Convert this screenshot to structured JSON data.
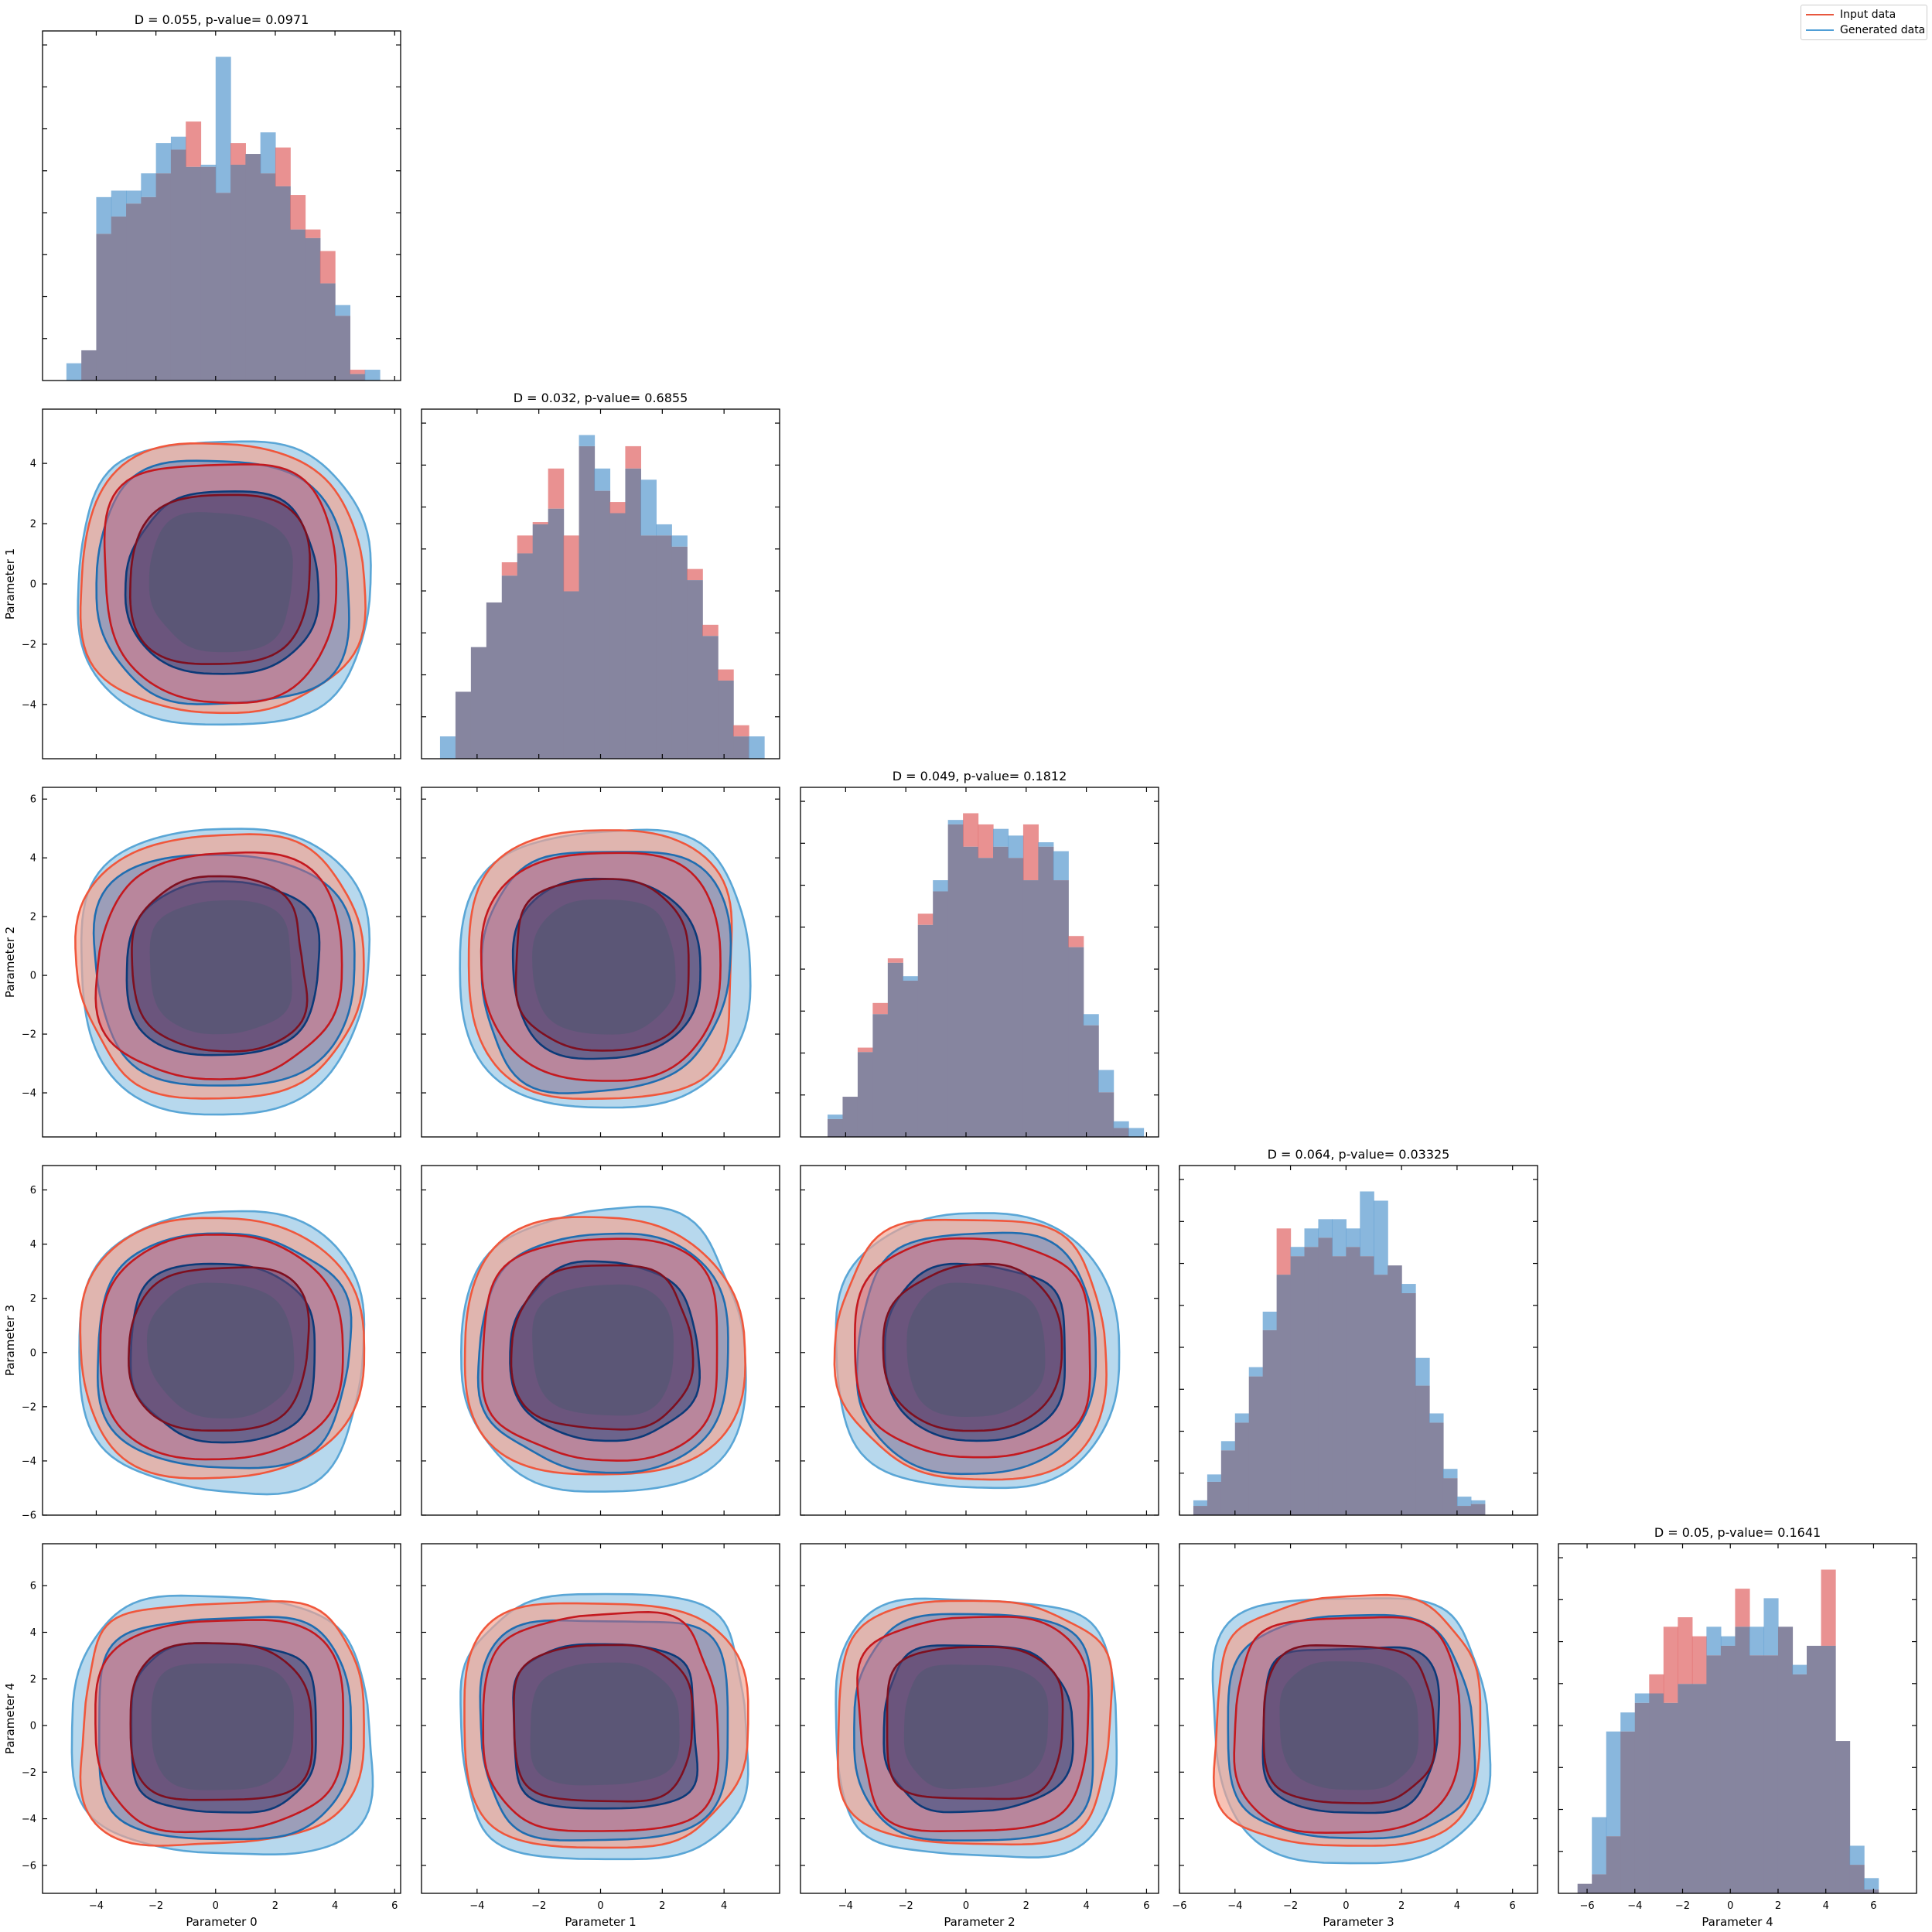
{
  "chart_data": {
    "type": "corner-plot",
    "legend": {
      "placement": "top-right",
      "entries": [
        {
          "label": "Input data",
          "color": "#e8573e"
        },
        {
          "label": "Generated data",
          "color": "#4f9ed6"
        }
      ]
    },
    "colors": {
      "input_hist": "#e06666",
      "generated_hist": "#5b9bd0",
      "overlap": "#86859f",
      "input_fill_outer": "#f4a38f",
      "input_line_outer": "#f0573c",
      "input_line_mid": "#c4191f",
      "input_line_inner": "#7e0f1f",
      "generated_fill_outer": "#a3cde8",
      "generated_line_outer": "#5aa6d6",
      "generated_line_mid": "#1f6db0",
      "generated_line_inner": "#0c3a78",
      "core_fill": "#5a5676"
    },
    "parameters": [
      {
        "label": "Parameter 0",
        "range": [
          -5.8,
          6.2
        ],
        "ticks": [
          -4,
          -2,
          0,
          2,
          4,
          6
        ],
        "center": 0.2,
        "half_width": 4.8
      },
      {
        "label": "Parameter 1",
        "range": [
          -5.8,
          5.8
        ],
        "ticks": [
          -4,
          -2,
          0,
          2,
          4
        ],
        "center": 0.1,
        "half_width": 4.6
      },
      {
        "label": "Parameter 2",
        "range": [
          -5.5,
          6.4
        ],
        "ticks": [
          -4,
          -2,
          0,
          2,
          4,
          6
        ],
        "center": 0.3,
        "half_width": 4.6
      },
      {
        "label": "Parameter 3",
        "range": [
          -6.0,
          6.9
        ],
        "ticks": [
          -6,
          -4,
          -2,
          0,
          2,
          4,
          6
        ],
        "center": 0.1,
        "half_width": 4.9
      },
      {
        "label": "Parameter 4",
        "range": [
          -7.2,
          7.8
        ],
        "ticks": [
          -6,
          -4,
          -2,
          0,
          2,
          4,
          6
        ],
        "center": 0.0,
        "half_width": 5.4
      }
    ],
    "ks_tests": [
      {
        "title": "D = 0.055, p-value= 0.0971"
      },
      {
        "title": "D = 0.032, p-value= 0.6855"
      },
      {
        "title": "D = 0.049, p-value= 0.1812"
      },
      {
        "title": "D = 0.064, p-value= 0.03325"
      },
      {
        "title": "D = 0.05, p-value= 0.1641"
      }
    ],
    "histograms": [
      {
        "bins": [
          -5.0,
          -4.5,
          -4.0,
          -3.5,
          -3.0,
          -2.5,
          -2.0,
          -1.5,
          -1.0,
          -0.5,
          0.0,
          0.5,
          1.0,
          1.5,
          2.0,
          2.5,
          3.0,
          3.5,
          4.0,
          4.5,
          5.0,
          5.5
        ],
        "input": [
          0,
          0.14,
          0.68,
          0.76,
          0.82,
          0.85,
          0.96,
          1.07,
          1.2,
          0.99,
          0.87,
          1.1,
          1.05,
          0.96,
          1.08,
          0.86,
          0.7,
          0.6,
          0.3,
          0.05,
          0
        ],
        "generated": [
          0.08,
          0.14,
          0.85,
          0.88,
          0.88,
          0.96,
          1.1,
          1.13,
          0.99,
          1.0,
          1.5,
          1.0,
          1.05,
          1.15,
          0.9,
          0.7,
          0.66,
          0.45,
          0.35,
          0.03,
          0.05
        ]
      },
      {
        "bins": [
          -5.2,
          -4.7,
          -4.2,
          -3.7,
          -3.2,
          -2.7,
          -2.2,
          -1.7,
          -1.2,
          -0.7,
          -0.2,
          0.3,
          0.8,
          1.3,
          1.8,
          2.3,
          2.8,
          3.3,
          3.8,
          4.3,
          4.8,
          5.3
        ],
        "input": [
          0,
          0.3,
          0.5,
          0.7,
          0.88,
          1.0,
          1.06,
          1.3,
          1.0,
          1.4,
          1.2,
          1.15,
          1.4,
          1.0,
          1.0,
          0.95,
          0.85,
          0.6,
          0.4,
          0.15,
          0
        ],
        "generated": [
          0.1,
          0.3,
          0.5,
          0.7,
          0.82,
          0.92,
          1.05,
          1.12,
          0.75,
          1.45,
          1.3,
          1.1,
          1.3,
          1.25,
          1.05,
          1.0,
          0.8,
          0.55,
          0.35,
          0.1,
          0.1
        ]
      },
      {
        "bins": [
          -4.6,
          -4.1,
          -3.6,
          -3.1,
          -2.6,
          -2.1,
          -1.6,
          -1.1,
          -0.6,
          -0.1,
          0.4,
          0.9,
          1.4,
          1.9,
          2.4,
          2.9,
          3.4,
          3.9,
          4.4,
          4.9,
          5.4,
          5.9
        ],
        "input": [
          0.08,
          0.18,
          0.4,
          0.6,
          0.8,
          0.7,
          1.0,
          1.1,
          1.4,
          1.45,
          1.4,
          1.3,
          1.25,
          1.4,
          1.3,
          1.15,
          0.9,
          0.5,
          0.2,
          0.04,
          0
        ],
        "generated": [
          0.1,
          0.18,
          0.38,
          0.55,
          0.78,
          0.72,
          0.95,
          1.15,
          1.42,
          1.3,
          1.25,
          1.38,
          1.35,
          1.15,
          1.32,
          1.28,
          0.85,
          0.55,
          0.3,
          0.07,
          0.04
        ]
      },
      {
        "bins": [
          -5.5,
          -5.0,
          -4.5,
          -4.0,
          -3.5,
          -3.0,
          -2.5,
          -2.0,
          -1.5,
          -1.0,
          -0.5,
          0.0,
          0.5,
          1.0,
          1.5,
          2.0,
          2.5,
          3.0,
          3.5,
          4.0,
          4.5,
          5.0
        ],
        "input": [
          0.05,
          0.18,
          0.35,
          0.5,
          0.75,
          1.0,
          1.55,
          1.4,
          1.45,
          1.5,
          1.4,
          1.45,
          1.4,
          1.3,
          1.35,
          1.2,
          0.7,
          0.5,
          0.2,
          0.05,
          0.06
        ],
        "generated": [
          0.08,
          0.22,
          0.4,
          0.55,
          0.8,
          1.1,
          1.3,
          1.45,
          1.55,
          1.6,
          1.6,
          1.55,
          1.75,
          1.7,
          1.35,
          1.25,
          0.85,
          0.55,
          0.25,
          0.1,
          0.08
        ]
      },
      {
        "bins": [
          -6.4,
          -5.8,
          -5.2,
          -4.6,
          -4.0,
          -3.4,
          -2.8,
          -2.2,
          -1.6,
          -1.0,
          -0.4,
          0.2,
          0.8,
          1.4,
          2.0,
          2.6,
          3.2,
          3.8,
          4.4,
          5.0,
          5.6,
          6.2
        ],
        "input": [
          0.05,
          0.1,
          0.3,
          0.85,
          1.0,
          1.15,
          1.4,
          1.45,
          1.35,
          1.25,
          1.3,
          1.6,
          1.25,
          1.25,
          1.4,
          1.15,
          1.3,
          1.7,
          0.8,
          0.15,
          0.02
        ],
        "generated": [
          0.05,
          0.4,
          0.85,
          0.95,
          1.05,
          1.05,
          1.0,
          1.1,
          1.1,
          1.4,
          1.35,
          1.4,
          1.4,
          1.55,
          1.4,
          1.2,
          1.3,
          1.3,
          0.8,
          0.25,
          0.08
        ]
      }
    ]
  }
}
